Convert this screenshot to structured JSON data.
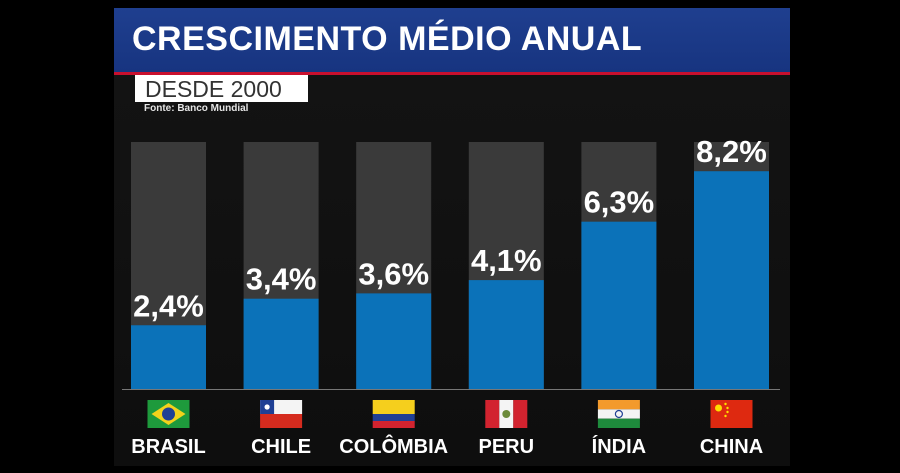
{
  "header": {
    "title": "CRESCIMENTO MÉDIO ANUAL",
    "subtitle": "DESDE 2000",
    "source": "Fonte: Banco Mundial"
  },
  "chart_data": {
    "type": "bar",
    "title": "CRESCIMENTO MÉDIO ANUAL",
    "subtitle": "DESDE 2000",
    "categories": [
      "BRASIL",
      "CHILE",
      "COLÔMBIA",
      "PERU",
      "ÍNDIA",
      "CHINA"
    ],
    "values": [
      2.4,
      3.4,
      3.6,
      4.1,
      6.3,
      8.2
    ],
    "value_labels": [
      "2,4%",
      "3,4%",
      "3,6%",
      "4,1%",
      "6,3%",
      "8,2%"
    ],
    "flags": [
      "brazil-flag",
      "chile-flag",
      "colombia-flag",
      "peru-flag",
      "india-flag",
      "china-flag"
    ],
    "ylim": [
      0,
      9.3
    ],
    "xlabel": "",
    "ylabel": "",
    "grid": false
  },
  "colors": {
    "bar": "#0b72b9",
    "bar_track": "#3a3a3a",
    "title_bg": "#1b3a87",
    "accent": "#c8102e"
  }
}
